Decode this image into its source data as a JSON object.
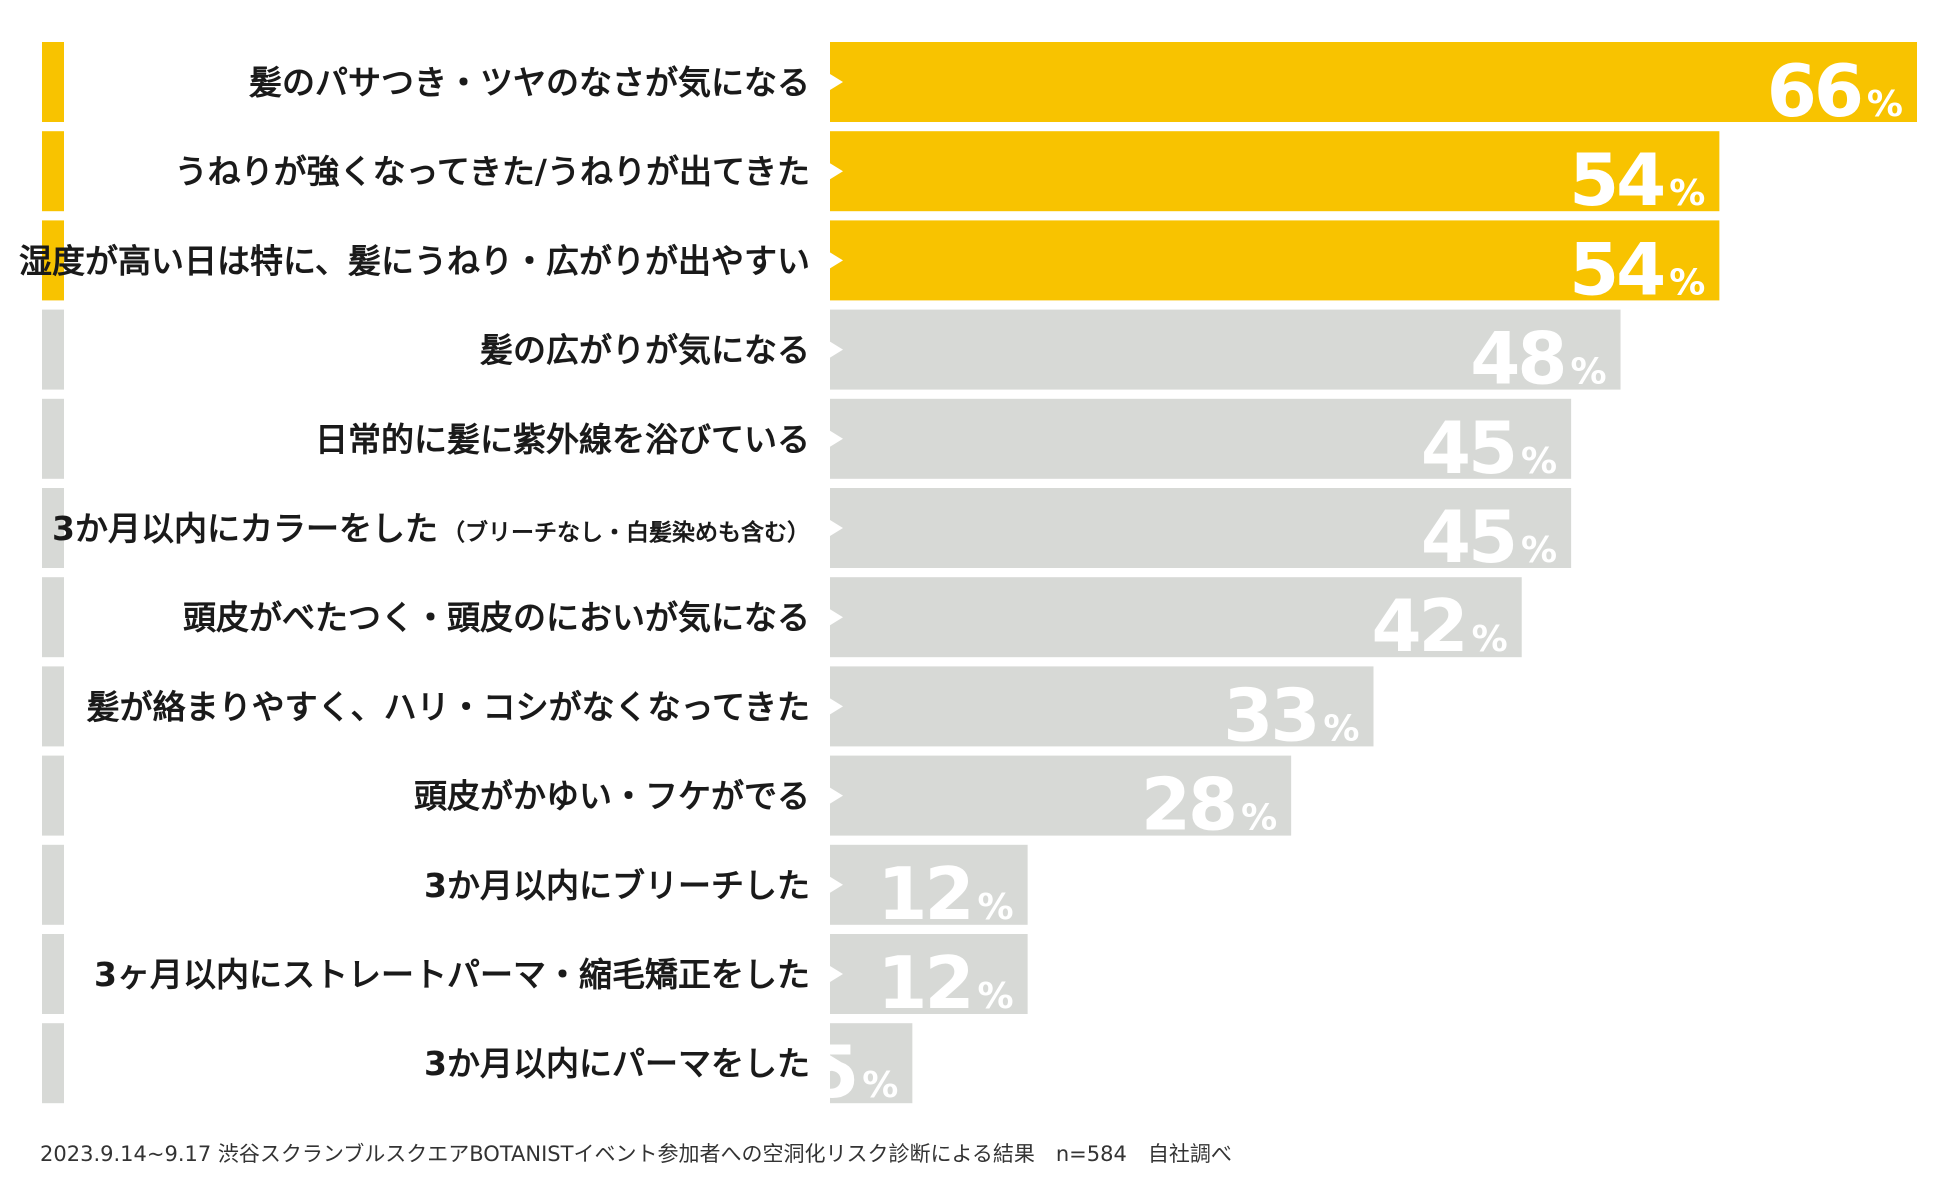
{
  "chart_data": {
    "type": "bar",
    "orientation": "horizontal",
    "xlim": [
      0,
      66
    ],
    "unit": "%",
    "categories": [
      "髪のパサつき・ツヤのなさが気になる",
      "うねりが強くなってきた/うねりが出てきた",
      "湿度が高い日は特に、髪にうねり・広がりが出やすい",
      "髪の広がりが気になる",
      "日常的に髪に紫外線を浴びている",
      "3か月以内にカラーをした（ブリーチなし・白髪染めも含む）",
      "頭皮がべたつく・頭皮のにおいが気になる",
      "髪が絡まりやすく、ハリ・コシがなくなってきた",
      "頭皮がかゆい・フケがでる",
      "3か月以内にブリーチした",
      "3ヶ月以内にストレートパーマ・縮毛矯正をした",
      "3か月以内にパーマをした"
    ],
    "values": [
      66,
      54,
      54,
      48,
      45,
      45,
      42,
      33,
      28,
      12,
      12,
      5
    ],
    "highlighted": [
      true,
      true,
      true,
      false,
      false,
      false,
      false,
      false,
      false,
      false,
      false,
      false
    ],
    "label_parts": [
      [
        "髪のパサつき・ツヤのなさが気になる",
        ""
      ],
      [
        "うねりが強くなってきた/うねりが出てきた",
        ""
      ],
      [
        "湿度が高い日は特に、髪にうねり・広がりが出やすい",
        ""
      ],
      [
        "髪の広がりが気になる",
        ""
      ],
      [
        "日常的に髪に紫外線を浴びている",
        ""
      ],
      [
        "3か月以内にカラーをした",
        "（ブリーチなし・白髪染めも含む）"
      ],
      [
        "頭皮がべたつく・頭皮のにおいが気になる",
        ""
      ],
      [
        "髪が絡まりやすく、ハリ・コシがなくなってきた",
        ""
      ],
      [
        "頭皮がかゆい・フケがでる",
        ""
      ],
      [
        "3か月以内にブリーチした",
        ""
      ],
      [
        "3ヶ月以内にストレートパーマ・縮毛矯正をした",
        ""
      ],
      [
        "3か月以内にパーマをした",
        ""
      ]
    ],
    "percent_sign": "%",
    "grid": false,
    "legend": "none"
  },
  "colors": {
    "highlight": "#f8c300",
    "muted": "#d7d9d6",
    "value_text": "#ffffff",
    "label_text": "#1a1a1a"
  },
  "footnote": "2023.9.14~9.17 渋谷スクランブルスクエアBOTANISTイベント参加者への空洞化リスク診断による結果　n=584　自社調べ"
}
